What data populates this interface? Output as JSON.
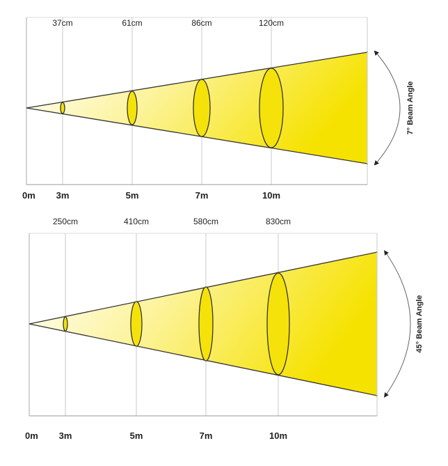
{
  "panels": [
    {
      "widths": [
        "37cm",
        "61cm",
        "86cm",
        "120cm"
      ],
      "distances": [
        "0m",
        "3m",
        "5m",
        "7m",
        "10m"
      ],
      "angle_label": "7° Beam Angle"
    },
    {
      "widths": [
        "250cm",
        "410cm",
        "580cm",
        "830cm"
      ],
      "distances": [
        "0m",
        "3m",
        "5m",
        "7m",
        "10m"
      ],
      "angle_label": "45° Beam Angle"
    }
  ]
}
